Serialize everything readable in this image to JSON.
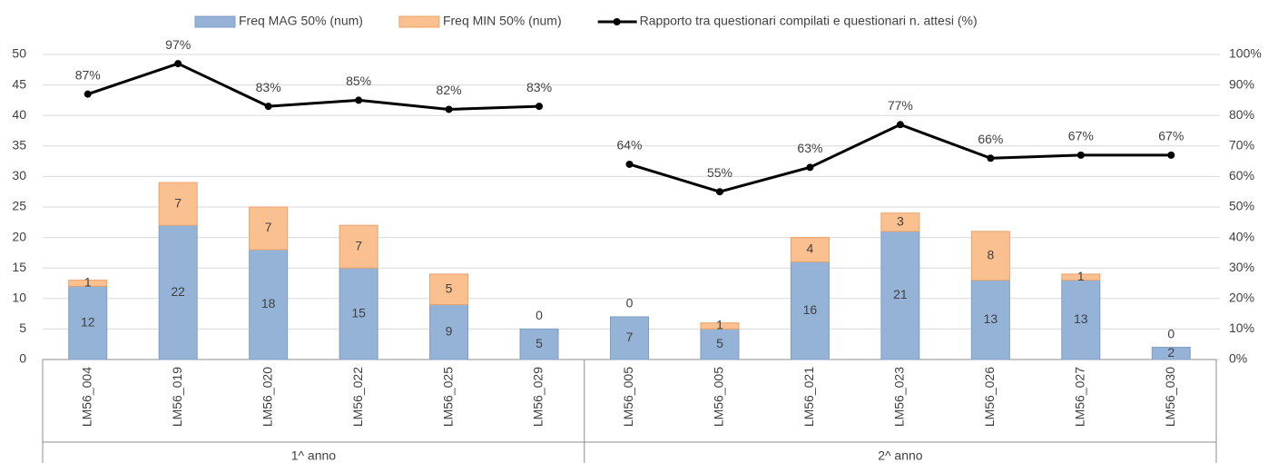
{
  "chart_data": {
    "type": "bar",
    "categories": [
      "LM56_004",
      "LM56_019",
      "LM56_020",
      "LM56_022",
      "LM56_025",
      "LM56_029",
      "LM56_005",
      "LM56_005",
      "LM56_021",
      "LM56_023",
      "LM56_026",
      "LM56_027",
      "LM56_030"
    ],
    "groups": [
      {
        "label": "1^ anno",
        "span": [
          0,
          5
        ]
      },
      {
        "label": "2^ anno",
        "span": [
          6,
          12
        ]
      }
    ],
    "stacked": true,
    "series": [
      {
        "name": "Freq MAG 50% (num)",
        "color": "#95b3d7",
        "values": [
          12,
          22,
          18,
          15,
          9,
          5,
          7,
          5,
          16,
          21,
          13,
          13,
          2
        ]
      },
      {
        "name": "Freq MIN 50% (num)",
        "color": "#fac090",
        "values": [
          1,
          7,
          7,
          7,
          5,
          0,
          0,
          1,
          4,
          3,
          8,
          1,
          0
        ]
      },
      {
        "name": "Rapporto tra questionari compilati e questionari n. attesi (%)",
        "type": "line",
        "axis": "y2",
        "color": "#000000",
        "values": [
          87,
          97,
          83,
          85,
          82,
          83,
          64,
          55,
          63,
          77,
          66,
          67,
          67
        ],
        "value_labels": [
          "87%",
          "97%",
          "83%",
          "85%",
          "82%",
          "83%",
          "64%",
          "55%",
          "63%",
          "77%",
          "66%",
          "67%",
          "67%"
        ]
      }
    ],
    "ylim": [
      0,
      50
    ],
    "yticks": [
      0,
      5,
      10,
      15,
      20,
      25,
      30,
      35,
      40,
      45,
      50
    ],
    "y2lim": [
      0,
      100
    ],
    "y2ticks": [
      {
        "value": 0,
        "label": "0%"
      },
      {
        "value": 10,
        "label": "10%"
      },
      {
        "value": 20,
        "label": "20%"
      },
      {
        "value": 30,
        "label": "30%"
      },
      {
        "value": 40,
        "label": "40%"
      },
      {
        "value": 50,
        "label": "50%"
      },
      {
        "value": 60,
        "label": "60%"
      },
      {
        "value": 70,
        "label": "70%"
      },
      {
        "value": 80,
        "label": "80%"
      },
      {
        "value": 90,
        "label": "90%"
      },
      {
        "value": 100,
        "label": "100%"
      }
    ],
    "grid": true,
    "legend": "top"
  }
}
